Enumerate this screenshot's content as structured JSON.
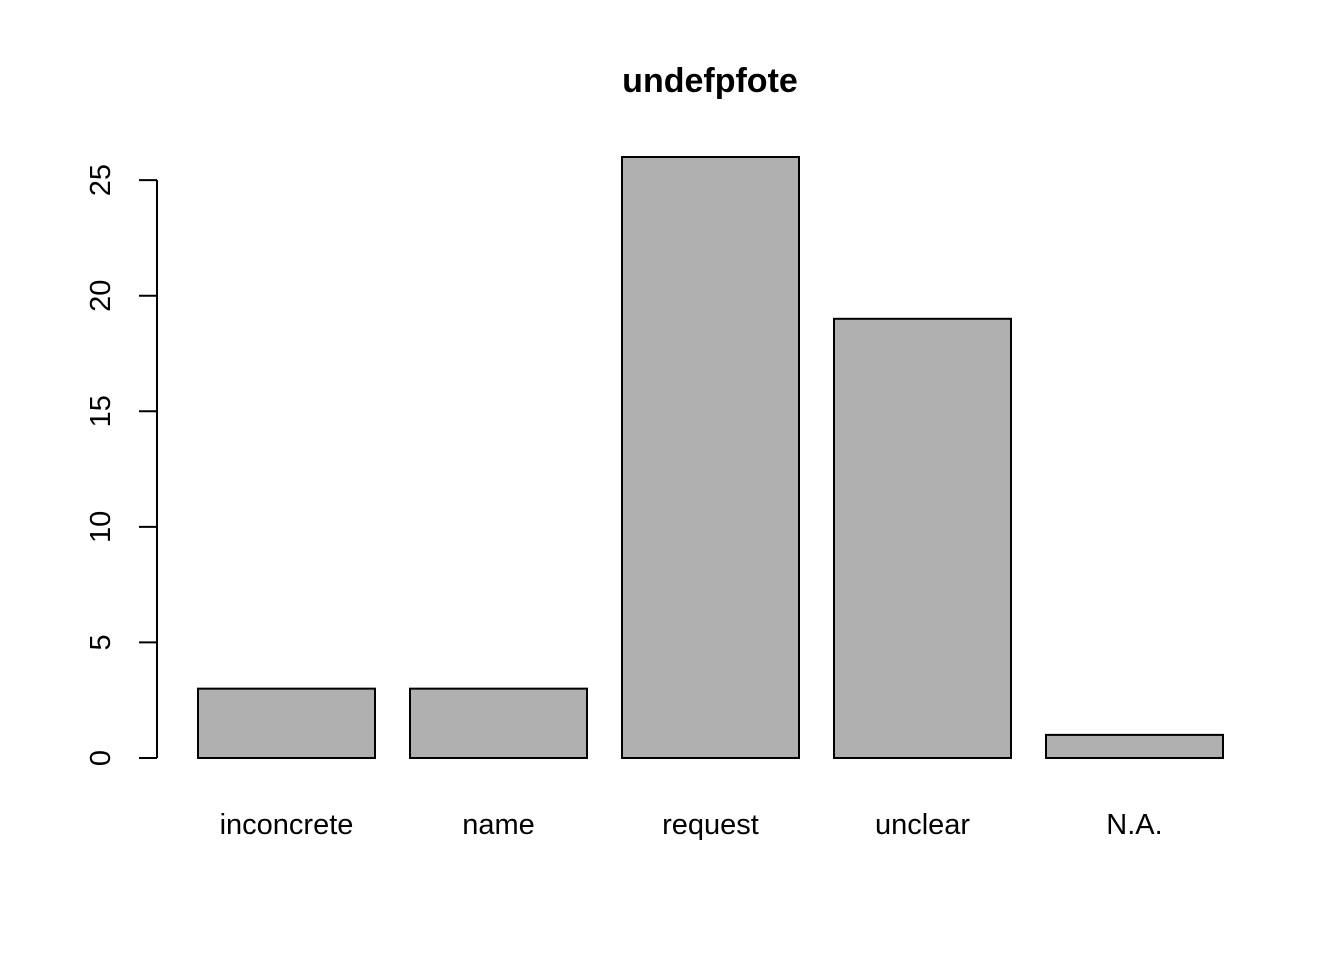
{
  "chart_data": {
    "type": "bar",
    "title": "undefpfote",
    "xlabel": "",
    "ylabel": "",
    "categories": [
      "inconcrete",
      "name",
      "request",
      "unclear",
      "N.A."
    ],
    "values": [
      3,
      3,
      26,
      19,
      1
    ],
    "ylim": [
      0,
      26
    ],
    "yticks": [
      0,
      5,
      10,
      15,
      20,
      25
    ],
    "grid": false,
    "legend": "none",
    "bar_color": "#b0b0b0",
    "border_color": "#000000"
  }
}
